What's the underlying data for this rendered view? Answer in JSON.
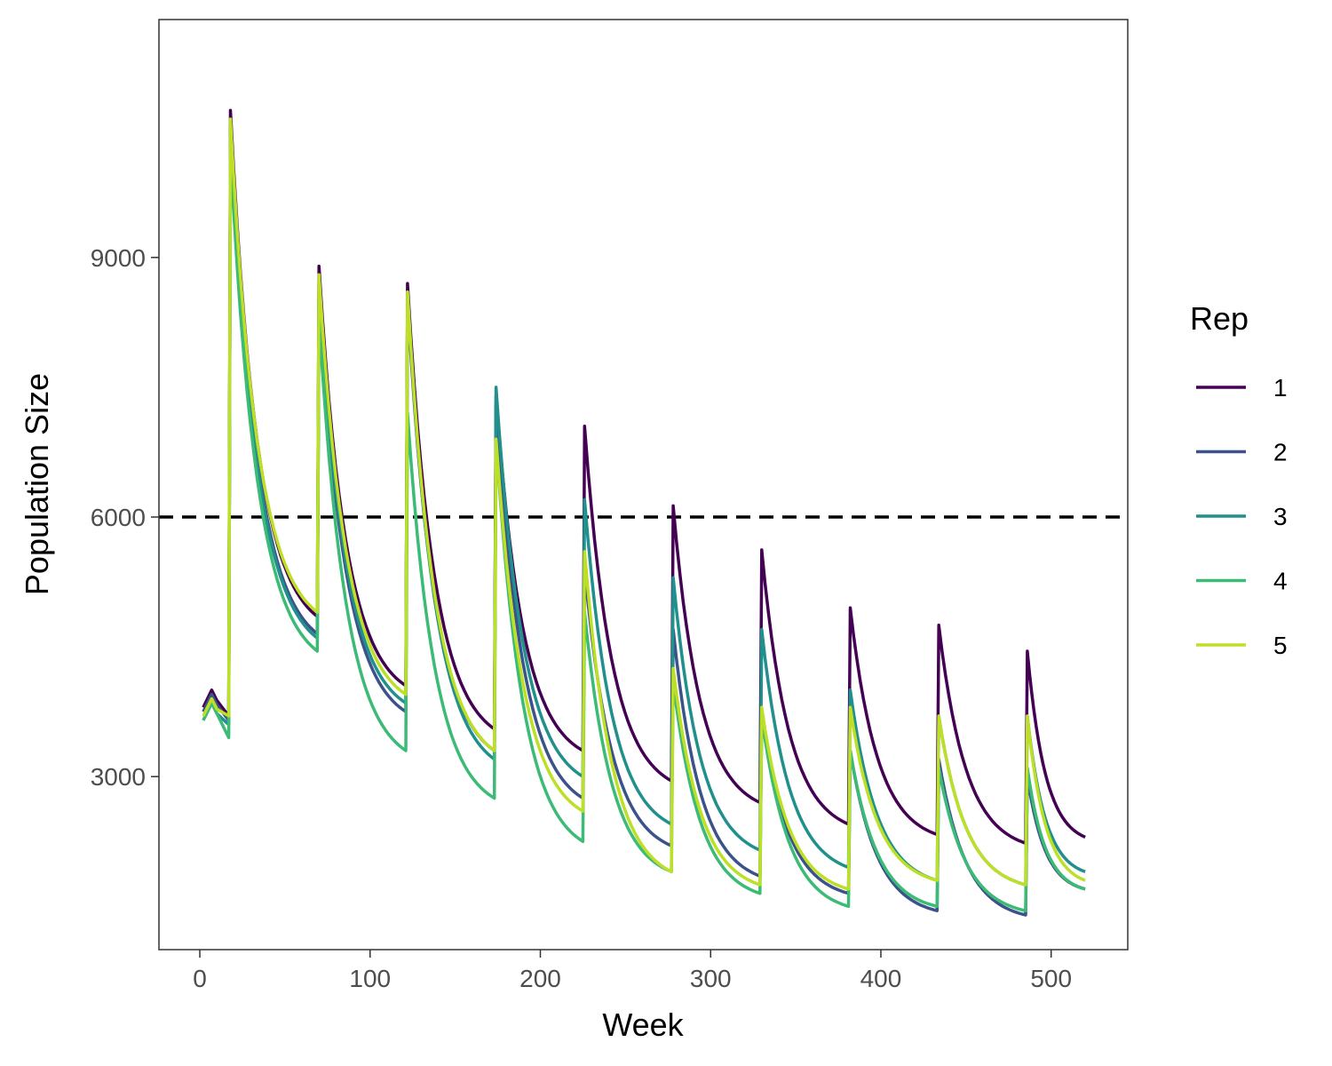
{
  "chart_data": {
    "type": "line",
    "xlabel": "Week",
    "ylabel": "Population Size",
    "xlim": [
      -24,
      545
    ],
    "ylim": [
      1000,
      11750
    ],
    "x_ticks": [
      0,
      100,
      200,
      300,
      400,
      500
    ],
    "x_tick_labels": [
      "0",
      "100",
      "200",
      "300",
      "400",
      "500"
    ],
    "y_ticks": [
      3000,
      6000,
      9000
    ],
    "y_tick_labels": [
      "3000",
      "6000",
      "9000"
    ],
    "grid": false,
    "reference_line": {
      "y": 6000,
      "style": "dashed",
      "color": "#000000"
    },
    "legend": {
      "title": "Rep",
      "position": "right"
    },
    "series": [
      {
        "name": "1",
        "color": "#440154",
        "peaks": [
          10700,
          8900,
          8700,
          7400,
          7050,
          6130,
          5620,
          4950,
          4750,
          4450
        ],
        "troughs": [
          3700,
          4850,
          4050,
          3550,
          3300,
          2950,
          2700,
          2450,
          2330,
          2230
        ],
        "final": 2300
      },
      {
        "name": "2",
        "color": "#3B528B",
        "peaks": [
          10500,
          8500,
          8500,
          7300,
          5400,
          4700,
          3700,
          3300,
          3200,
          3000
        ],
        "troughs": [
          3650,
          4650,
          3750,
          3300,
          2750,
          2200,
          1850,
          1650,
          1450,
          1400
        ],
        "final": 1700
      },
      {
        "name": "3",
        "color": "#21908C",
        "peaks": [
          10400,
          8600,
          8600,
          7500,
          6200,
          5300,
          4700,
          4000,
          3700,
          3700
        ],
        "troughs": [
          3600,
          4600,
          3850,
          3200,
          3000,
          2450,
          2150,
          1950,
          1800,
          1750
        ],
        "final": 1900
      },
      {
        "name": "4",
        "color": "#3BBB75",
        "peaks": [
          10200,
          8300,
          7200,
          6900,
          4900,
          4100,
          3700,
          3300,
          3100,
          3100
        ],
        "troughs": [
          3450,
          4450,
          3300,
          2750,
          2250,
          1900,
          1650,
          1500,
          1500,
          1450
        ],
        "final": 1700
      },
      {
        "name": "5",
        "color": "#BDDF26",
        "peaks": [
          10600,
          8800,
          8600,
          6900,
          5600,
          4250,
          3800,
          3800,
          3700,
          3700
        ],
        "troughs": [
          3700,
          4900,
          3950,
          3300,
          2600,
          1900,
          1750,
          1700,
          1800,
          1750
        ],
        "final": 1800
      }
    ],
    "pulse_weeks": [
      18,
      70,
      122,
      174,
      226,
      278,
      330,
      382,
      434,
      486
    ],
    "start_values": [
      3800,
      3750,
      3650,
      3650,
      3700
    ],
    "end_week": 520
  }
}
